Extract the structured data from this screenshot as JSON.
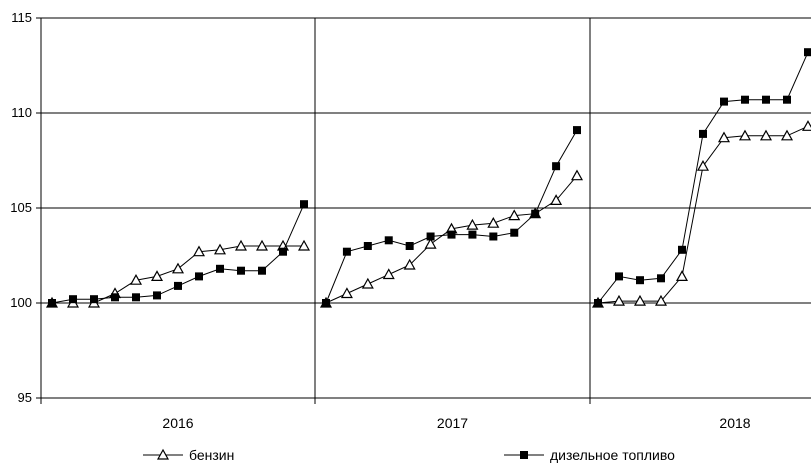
{
  "chart_data": {
    "type": "line",
    "title": "",
    "xlabel": "",
    "ylabel": "",
    "ylim": [
      95,
      115
    ],
    "yticks": [
      95,
      100,
      105,
      110,
      115
    ],
    "grid": "major horizontal and year separators",
    "groups": [
      "2016",
      "2017",
      "2018"
    ],
    "series": [
      {
        "name": "бензин",
        "marker": "open-triangle",
        "segments": [
          [
            100.0,
            100.0,
            100.0,
            100.5,
            101.2,
            101.4,
            101.8,
            102.7,
            102.8,
            103.0,
            103.0,
            103.0,
            103.0
          ],
          [
            100.0,
            100.5,
            101.0,
            101.5,
            102.0,
            103.1,
            103.9,
            104.1,
            104.2,
            104.6,
            104.7,
            105.4,
            106.7
          ],
          [
            100.0,
            100.1,
            100.1,
            100.1,
            101.4,
            107.2,
            108.7,
            108.8,
            108.8,
            108.8,
            109.3
          ]
        ]
      },
      {
        "name": "дизельное топливо",
        "marker": "filled-square",
        "segments": [
          [
            100.0,
            100.2,
            100.2,
            100.3,
            100.3,
            100.4,
            100.9,
            101.4,
            101.8,
            101.7,
            101.7,
            102.7,
            105.2
          ],
          [
            100.0,
            102.7,
            103.0,
            103.3,
            103.0,
            103.5,
            103.6,
            103.6,
            103.5,
            103.7,
            104.7,
            107.2,
            109.1
          ],
          [
            100.0,
            101.4,
            101.2,
            101.3,
            102.8,
            108.9,
            110.6,
            110.7,
            110.7,
            110.7,
            113.2
          ]
        ]
      }
    ]
  }
}
